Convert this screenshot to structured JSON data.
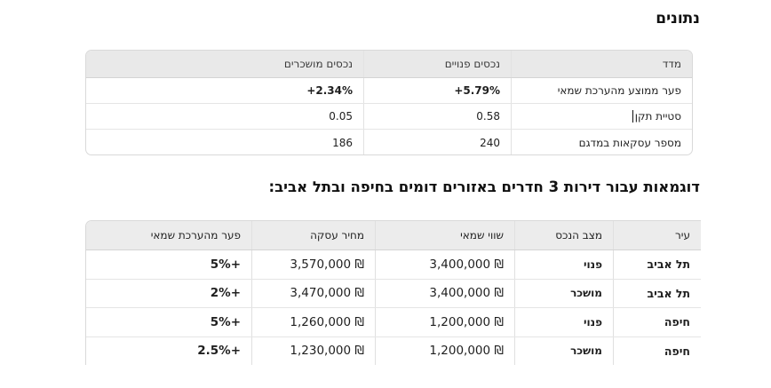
{
  "section1": {
    "title": "נתונים",
    "headers": [
      "מדד",
      "נכסים פנויים",
      "נכסים מושכרים"
    ],
    "rows": [
      [
        "פער ממוצע מהערכת שמאי",
        "+5.79%",
        "+2.34%"
      ],
      [
        "סטיית תקן",
        "0.58",
        "0.05"
      ],
      [
        "מספר עסקאות במדגם",
        "240",
        "186"
      ]
    ]
  },
  "section2": {
    "title": "דוגמאות עבור דירות 3 חדרים באזורים דומים בחיפה ובתל אביב:",
    "headers": [
      "עיר",
      "מצב הנכס",
      "שווי שמאי",
      "מחיר עסקה",
      "פער מהערכת שמאי"
    ],
    "rows": [
      [
        "תל אביב",
        "פנוי",
        "₪ 3,400,000",
        "₪ 3,570,000",
        "+5%"
      ],
      [
        "תל אביב",
        "מושכר",
        "₪ 3,400,000",
        "₪ 3,470,000",
        "+2%"
      ],
      [
        "חיפה",
        "פנוי",
        "₪ 1,200,000",
        "₪ 1,260,000",
        "+5%"
      ],
      [
        "חיפה",
        "מושכר",
        "₪ 1,200,000",
        "₪ 1,230,000",
        "+2.5%"
      ]
    ]
  }
}
